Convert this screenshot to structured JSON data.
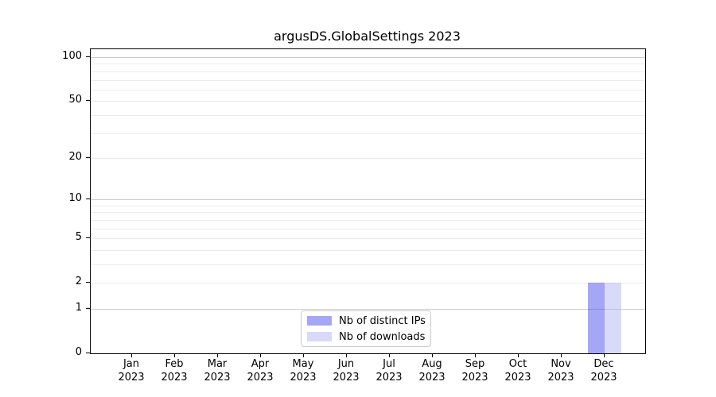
{
  "title": "argusDS.GlobalSettings 2023",
  "chart_data": {
    "type": "bar",
    "title": "argusDS.GlobalSettings 2023",
    "categories": [
      "Jan 2023",
      "Feb 2023",
      "Mar 2023",
      "Apr 2023",
      "May 2023",
      "Jun 2023",
      "Jul 2023",
      "Aug 2023",
      "Sep 2023",
      "Oct 2023",
      "Nov 2023",
      "Dec 2023"
    ],
    "x_axis": {
      "months": [
        "Jan",
        "Feb",
        "Mar",
        "Apr",
        "May",
        "Jun",
        "Jul",
        "Aug",
        "Sep",
        "Oct",
        "Nov",
        "Dec"
      ],
      "year": "2023"
    },
    "y_axis": {
      "scale": "log1p",
      "ticks": [
        0,
        1,
        2,
        5,
        10,
        20,
        50,
        100
      ],
      "tick_labels": [
        "0",
        "1",
        "2",
        "5",
        "10",
        "20",
        "50",
        "100"
      ],
      "major_grid": [
        1,
        10,
        100
      ],
      "minor_grid": [
        2,
        3,
        4,
        5,
        6,
        7,
        8,
        9,
        20,
        30,
        40,
        50,
        60,
        70,
        80,
        90
      ],
      "major_grid_color": "#cccccc",
      "minor_grid_color": "#ebebeb",
      "ylim": [
        0,
        113
      ]
    },
    "series": [
      {
        "name": "Nb of distinct IPs",
        "color": "rgba(57,57,235,0.45)",
        "values": [
          0,
          0,
          0,
          0,
          0,
          0,
          0,
          0,
          0,
          0,
          0,
          2
        ]
      },
      {
        "name": "Nb of downloads",
        "color": "rgba(170,170,242,0.45)",
        "values": [
          0,
          0,
          0,
          0,
          0,
          0,
          0,
          0,
          0,
          0,
          0,
          2
        ]
      }
    ],
    "legend": {
      "position": "lower-center",
      "entries": [
        {
          "label": "Nb of distinct IPs",
          "color": "rgba(57,57,235,0.45)"
        },
        {
          "label": "Nb of downloads",
          "color": "rgba(170,170,242,0.45)"
        }
      ]
    },
    "grid": true
  }
}
